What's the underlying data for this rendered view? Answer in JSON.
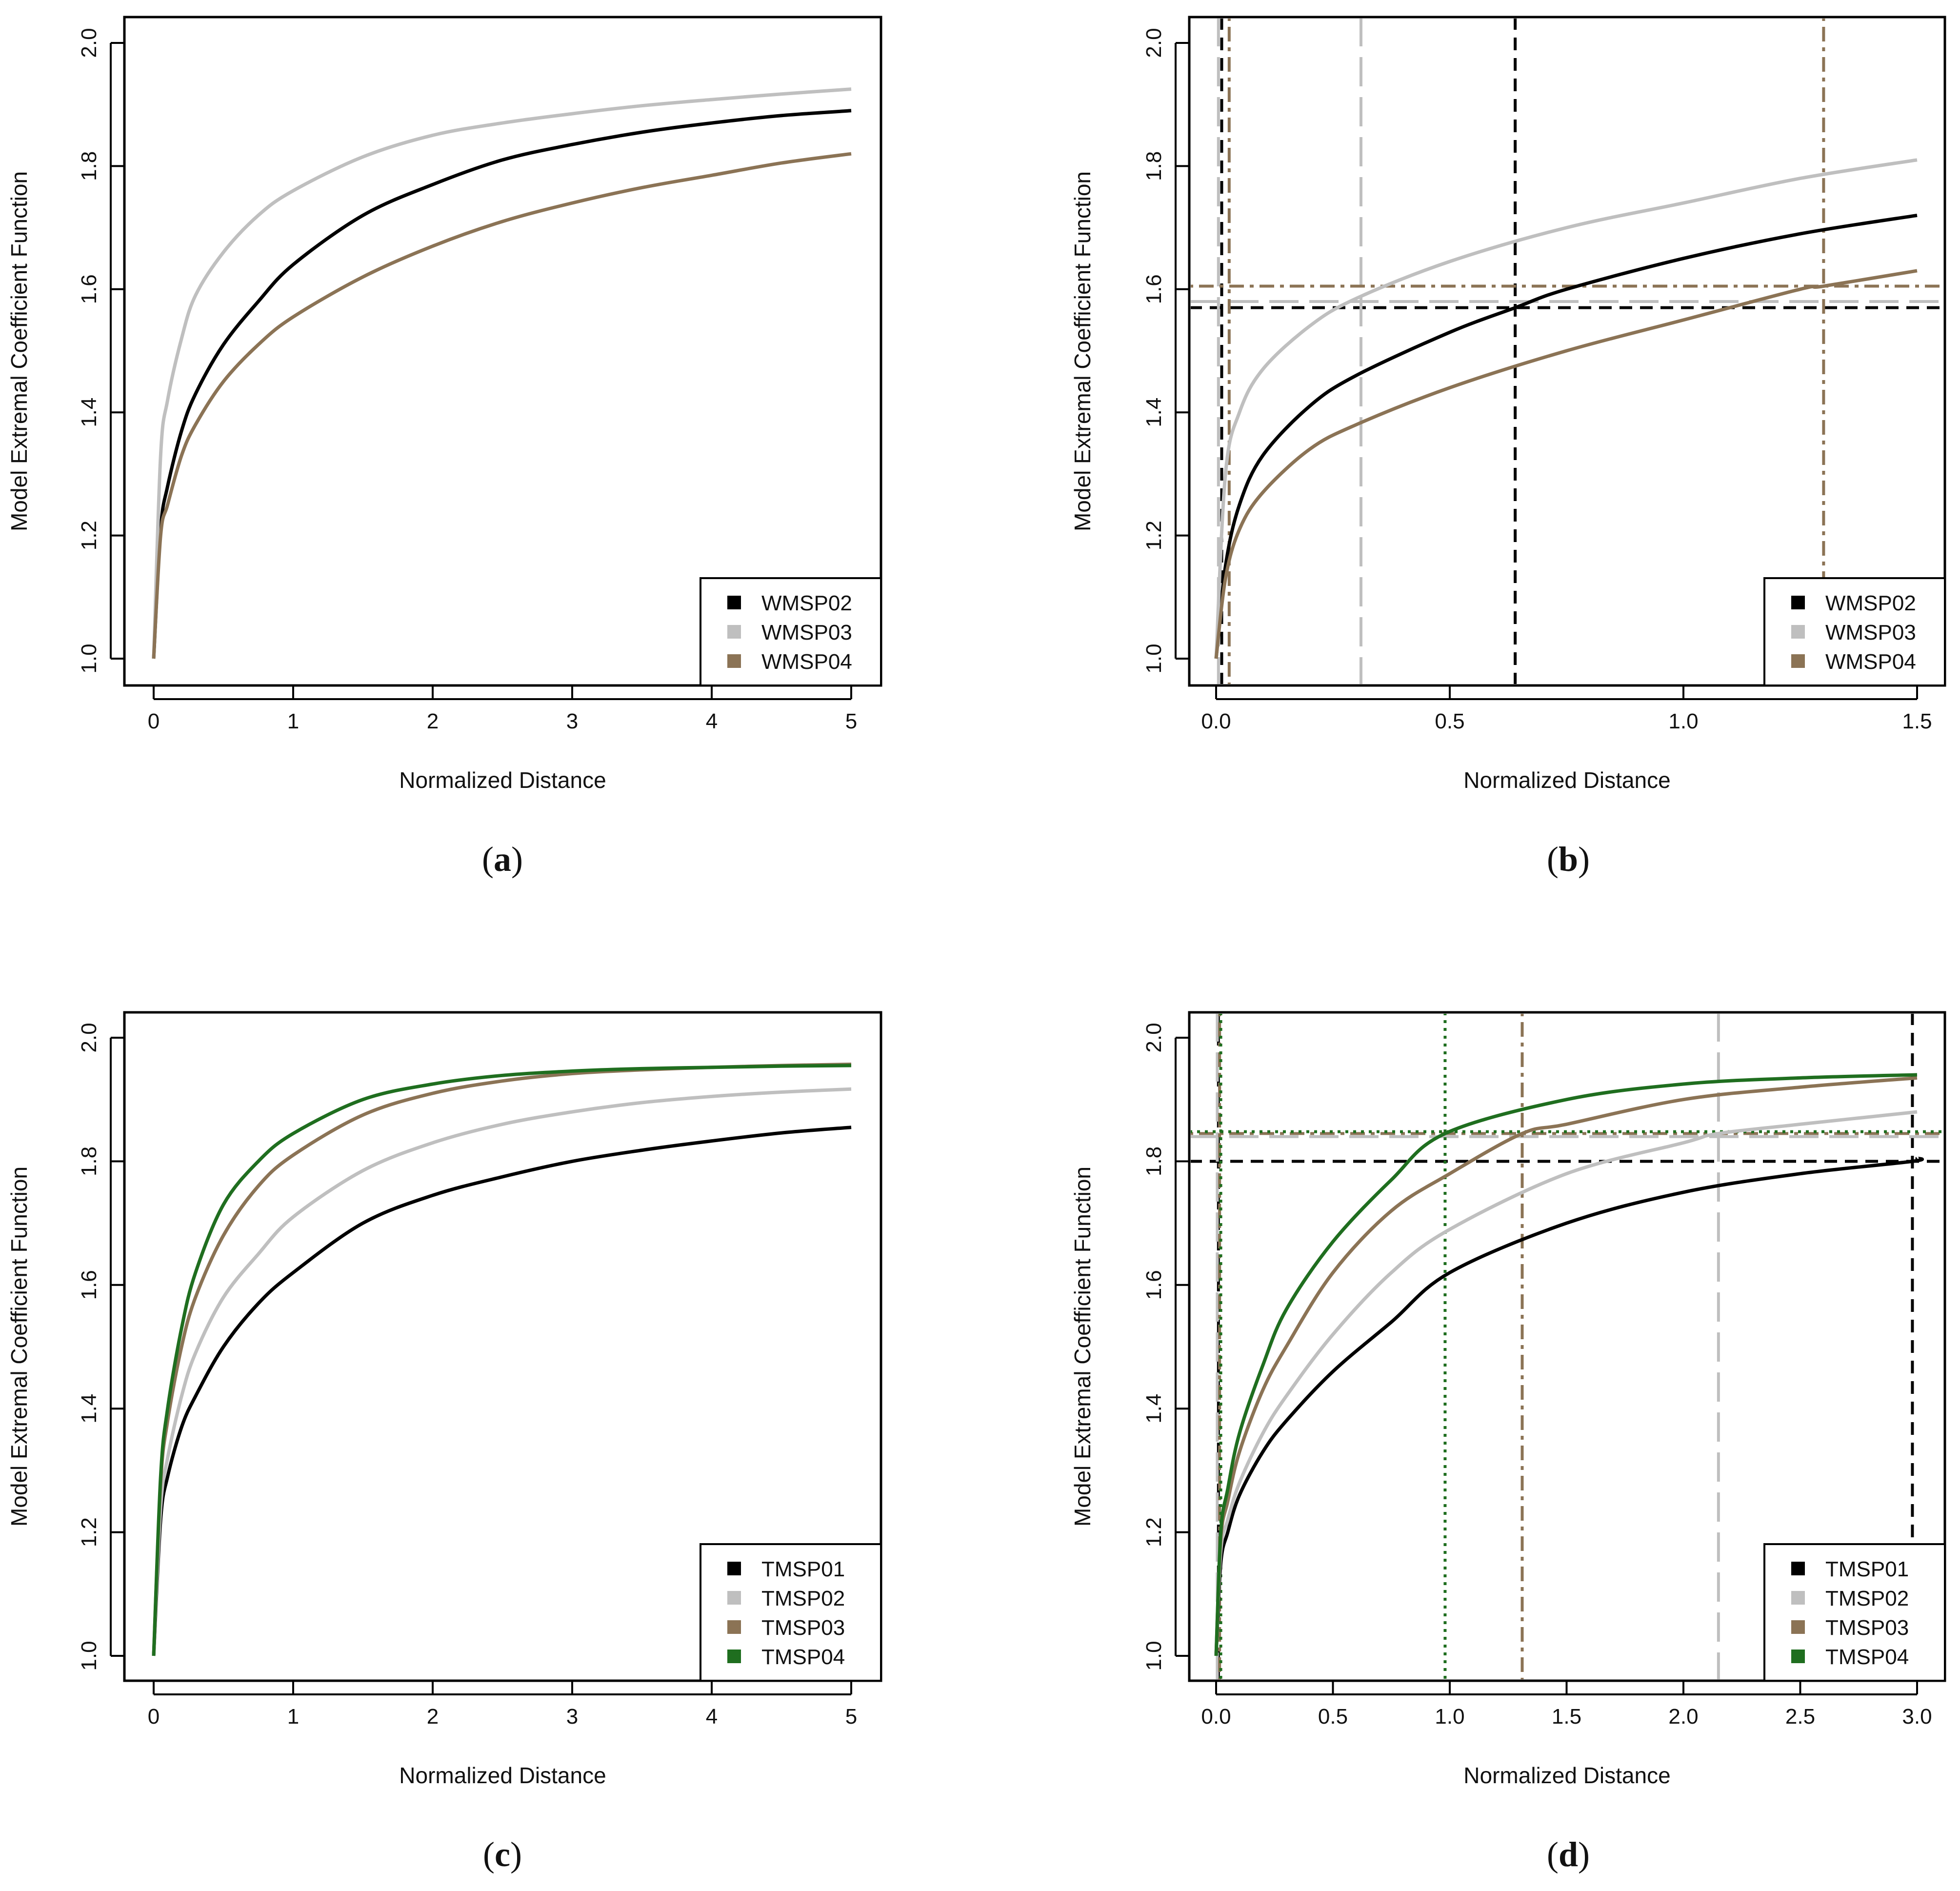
{
  "chart_data": [
    {
      "type": "line",
      "panel_label": "a",
      "xlabel": "Normalized Distance",
      "ylabel": "Model Extremal Coefficient Function",
      "xlim": [
        0,
        5
      ],
      "ylim": [
        1.0,
        2.0
      ],
      "xticks": [
        "0",
        "1",
        "2",
        "3",
        "4",
        "5"
      ],
      "yticks": [
        "1.0",
        "1.2",
        "1.4",
        "1.6",
        "1.8",
        "2.0"
      ],
      "legend_position": "bottom-right",
      "series": [
        {
          "name": "WMSP02",
          "color": "#000000",
          "x": [
            0,
            0.05,
            0.1,
            0.2,
            0.3,
            0.5,
            0.75,
            1,
            1.5,
            2,
            2.5,
            3,
            3.5,
            4,
            4.5,
            5
          ],
          "values": [
            1.0,
            1.21,
            1.28,
            1.37,
            1.43,
            1.51,
            1.58,
            1.64,
            1.72,
            1.77,
            1.81,
            1.835,
            1.855,
            1.87,
            1.882,
            1.89
          ]
        },
        {
          "name": "WMSP03",
          "color": "#bfbfbf",
          "x": [
            0,
            0.05,
            0.1,
            0.2,
            0.3,
            0.5,
            0.75,
            1,
            1.5,
            2,
            2.5,
            3,
            3.5,
            4,
            4.5,
            5
          ],
          "values": [
            1.0,
            1.33,
            1.42,
            1.52,
            1.59,
            1.66,
            1.72,
            1.76,
            1.815,
            1.85,
            1.87,
            1.885,
            1.898,
            1.908,
            1.917,
            1.925
          ]
        },
        {
          "name": "WMSP04",
          "color": "#8b7355",
          "x": [
            0,
            0.05,
            0.1,
            0.2,
            0.3,
            0.5,
            0.75,
            1,
            1.5,
            2,
            2.5,
            3,
            3.5,
            4,
            4.5,
            5
          ],
          "values": [
            1.0,
            1.2,
            1.25,
            1.33,
            1.38,
            1.45,
            1.51,
            1.555,
            1.62,
            1.67,
            1.71,
            1.74,
            1.765,
            1.785,
            1.805,
            1.82
          ]
        }
      ]
    },
    {
      "type": "line",
      "panel_label": "b",
      "xlabel": "Normalized Distance",
      "ylabel": "Model Extremal Coefficient Function",
      "xlim": [
        0,
        1.5
      ],
      "ylim": [
        1.0,
        2.0
      ],
      "xticks": [
        "0.0",
        "0.5",
        "1.0",
        "1.5"
      ],
      "yticks": [
        "1.0",
        "1.2",
        "1.4",
        "1.6",
        "1.8",
        "2.0"
      ],
      "legend_position": "bottom-right",
      "series": [
        {
          "name": "WMSP02",
          "color": "#000000",
          "x": [
            0,
            0.02,
            0.05,
            0.1,
            0.2,
            0.3,
            0.5,
            0.64,
            0.75,
            1.0,
            1.25,
            1.5
          ],
          "values": [
            1.0,
            1.15,
            1.25,
            1.33,
            1.41,
            1.46,
            1.53,
            1.57,
            1.6,
            1.65,
            1.69,
            1.72
          ]
        },
        {
          "name": "WMSP03",
          "color": "#bfbfbf",
          "x": [
            0,
            0.02,
            0.05,
            0.1,
            0.2,
            0.3,
            0.5,
            0.75,
            1.0,
            1.25,
            1.5
          ],
          "values": [
            1.0,
            1.3,
            1.4,
            1.47,
            1.54,
            1.585,
            1.645,
            1.7,
            1.74,
            1.78,
            1.81
          ]
        },
        {
          "name": "WMSP04",
          "color": "#8b7355",
          "x": [
            0,
            0.02,
            0.05,
            0.1,
            0.2,
            0.3,
            0.5,
            0.75,
            1.0,
            1.25,
            1.3,
            1.5
          ],
          "values": [
            1.0,
            1.13,
            1.21,
            1.27,
            1.34,
            1.38,
            1.44,
            1.5,
            1.55,
            1.6,
            1.605,
            1.63
          ]
        }
      ],
      "reference_lines": [
        {
          "series": "WMSP02",
          "color": "#000000",
          "style": "dashed",
          "hline": 1.57,
          "vlines": [
            0.012,
            0.64
          ]
        },
        {
          "series": "WMSP03",
          "color": "#bfbfbf",
          "style": "longdash",
          "hline": 1.58,
          "vlines": [
            0.005,
            0.31
          ]
        },
        {
          "series": "WMSP04",
          "color": "#8b7355",
          "style": "dotdash",
          "hline": 1.605,
          "vlines": [
            0.028,
            1.3
          ]
        }
      ]
    },
    {
      "type": "line",
      "panel_label": "c",
      "xlabel": "Normalized Distance",
      "ylabel": "Model Extremal Coefficient Function",
      "xlim": [
        0,
        5
      ],
      "ylim": [
        1.0,
        2.0
      ],
      "xticks": [
        "0",
        "1",
        "2",
        "3",
        "4",
        "5"
      ],
      "yticks": [
        "1.0",
        "1.2",
        "1.4",
        "1.6",
        "1.8",
        "2.0"
      ],
      "legend_position": "bottom-right",
      "series": [
        {
          "name": "TMSP01",
          "color": "#000000",
          "x": [
            0,
            0.05,
            0.1,
            0.2,
            0.3,
            0.5,
            0.75,
            1,
            1.5,
            2,
            2.5,
            3,
            3.5,
            4,
            4.5,
            5
          ],
          "values": [
            1.0,
            1.22,
            1.29,
            1.37,
            1.42,
            1.5,
            1.57,
            1.62,
            1.7,
            1.745,
            1.775,
            1.8,
            1.818,
            1.833,
            1.846,
            1.855
          ]
        },
        {
          "name": "TMSP02",
          "color": "#bfbfbf",
          "x": [
            0,
            0.05,
            0.1,
            0.2,
            0.3,
            0.5,
            0.75,
            1,
            1.5,
            2,
            2.5,
            3,
            3.5,
            4,
            4.5,
            5
          ],
          "values": [
            1.0,
            1.24,
            1.32,
            1.42,
            1.49,
            1.58,
            1.65,
            1.71,
            1.785,
            1.83,
            1.86,
            1.88,
            1.895,
            1.905,
            1.912,
            1.917
          ]
        },
        {
          "name": "TMSP03",
          "color": "#8b7355",
          "x": [
            0,
            0.05,
            0.1,
            0.2,
            0.3,
            0.5,
            0.75,
            1,
            1.5,
            2,
            2.5,
            3,
            3.5,
            4,
            4.5,
            5
          ],
          "values": [
            1.0,
            1.28,
            1.38,
            1.5,
            1.58,
            1.68,
            1.76,
            1.81,
            1.875,
            1.91,
            1.93,
            1.942,
            1.948,
            1.952,
            1.955,
            1.957
          ]
        },
        {
          "name": "TMSP04",
          "color": "#1f6e1f",
          "x": [
            0,
            0.05,
            0.1,
            0.2,
            0.3,
            0.5,
            0.75,
            1,
            1.5,
            2,
            2.5,
            3,
            3.5,
            4,
            4.5,
            5
          ],
          "values": [
            1.0,
            1.29,
            1.4,
            1.53,
            1.62,
            1.73,
            1.8,
            1.845,
            1.9,
            1.925,
            1.939,
            1.946,
            1.95,
            1.952,
            1.954,
            1.955
          ]
        }
      ]
    },
    {
      "type": "line",
      "panel_label": "d",
      "xlabel": "Normalized Distance",
      "ylabel": "Model Extremal Coefficient Function",
      "xlim": [
        0,
        3.0
      ],
      "ylim": [
        1.0,
        2.0
      ],
      "xticks": [
        "0.0",
        "0.5",
        "1.0",
        "1.5",
        "2.0",
        "2.5",
        "3.0"
      ],
      "yticks": [
        "1.0",
        "1.2",
        "1.4",
        "1.6",
        "1.8",
        "2.0"
      ],
      "legend_position": "bottom-right",
      "series": [
        {
          "name": "TMSP01",
          "color": "#000000",
          "x": [
            0,
            0.02,
            0.05,
            0.1,
            0.2,
            0.3,
            0.5,
            0.75,
            1.0,
            1.5,
            2.0,
            2.5,
            2.98,
            3.0
          ],
          "values": [
            1.0,
            1.15,
            1.2,
            1.26,
            1.33,
            1.38,
            1.46,
            1.54,
            1.62,
            1.7,
            1.75,
            1.78,
            1.8,
            1.805
          ]
        },
        {
          "name": "TMSP02",
          "color": "#bfbfbf",
          "x": [
            0,
            0.02,
            0.05,
            0.1,
            0.2,
            0.3,
            0.5,
            0.75,
            1.0,
            1.5,
            2.0,
            2.15,
            2.5,
            3.0
          ],
          "values": [
            1.0,
            1.17,
            1.22,
            1.28,
            1.36,
            1.42,
            1.52,
            1.62,
            1.69,
            1.78,
            1.83,
            1.845,
            1.86,
            1.88
          ]
        },
        {
          "name": "TMSP03",
          "color": "#8b7355",
          "x": [
            0,
            0.02,
            0.05,
            0.1,
            0.2,
            0.3,
            0.5,
            0.75,
            1.0,
            1.31,
            1.5,
            2.0,
            2.5,
            3.0
          ],
          "values": [
            1.0,
            1.19,
            1.25,
            1.33,
            1.43,
            1.5,
            1.62,
            1.72,
            1.78,
            1.845,
            1.86,
            1.9,
            1.92,
            1.935
          ]
        },
        {
          "name": "TMSP04",
          "color": "#1f6e1f",
          "x": [
            0,
            0.02,
            0.05,
            0.1,
            0.2,
            0.3,
            0.5,
            0.75,
            0.98,
            1.5,
            2.0,
            2.5,
            3.0
          ],
          "values": [
            1.0,
            1.2,
            1.27,
            1.36,
            1.47,
            1.56,
            1.67,
            1.77,
            1.845,
            1.9,
            1.925,
            1.935,
            1.94
          ]
        }
      ],
      "reference_lines": [
        {
          "series": "TMSP01",
          "color": "#000000",
          "style": "dashed",
          "hline": 1.8,
          "vlines": [
            0.01,
            2.98
          ]
        },
        {
          "series": "TMSP02",
          "color": "#bfbfbf",
          "style": "longdash",
          "hline": 1.84,
          "vlines": [
            0.005,
            2.15
          ]
        },
        {
          "series": "TMSP03",
          "color": "#8b7355",
          "style": "dotdash",
          "hline": 1.845,
          "vlines": [
            0.015,
            1.31
          ]
        },
        {
          "series": "TMSP04",
          "color": "#1f6e1f",
          "style": "dotted",
          "hline": 1.848,
          "vlines": [
            0.02,
            0.98
          ]
        }
      ]
    }
  ]
}
